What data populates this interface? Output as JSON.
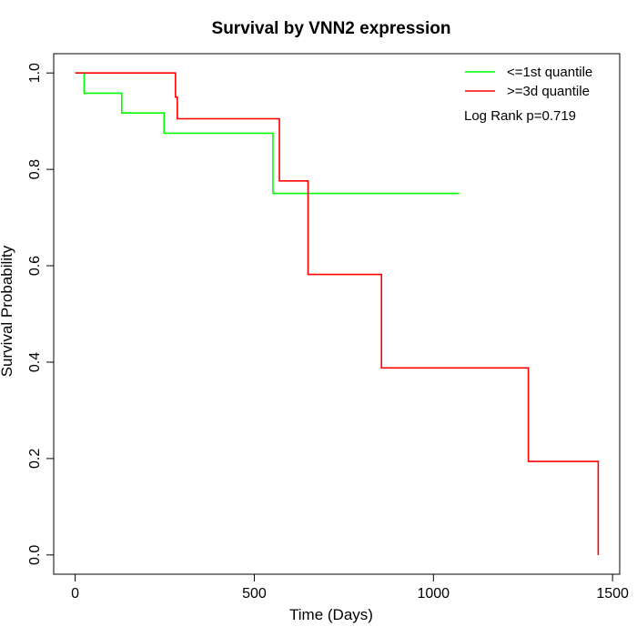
{
  "chart_data": {
    "type": "line",
    "step": true,
    "title": "Survival by VNN2 expression",
    "xlabel": "Time (Days)",
    "ylabel": "Survival Probability",
    "xlim": [
      -60,
      1520
    ],
    "ylim": [
      -0.04,
      1.04
    ],
    "xticks": [
      0,
      500,
      1000,
      1500
    ],
    "yticks": [
      0.0,
      0.2,
      0.4,
      0.6,
      0.8,
      1.0
    ],
    "xtick_labels": [
      "0",
      "500",
      "1000",
      "1500"
    ],
    "ytick_labels": [
      "0.0",
      "0.2",
      "0.4",
      "0.6",
      "0.8",
      "1.0"
    ],
    "grid": false,
    "legend_position": "top-right",
    "annotation": "Log Rank p=0.719",
    "series": [
      {
        "name": "<=1st quantile",
        "color": "#00ff00",
        "x": [
          0,
          25,
          130,
          248,
          552,
          1072
        ],
        "y": [
          1.0,
          0.958,
          0.917,
          0.875,
          0.75,
          0.75
        ]
      },
      {
        "name": ">=3d quantile",
        "color": "#ff0000",
        "x": [
          0,
          280,
          285,
          570,
          650,
          855,
          1265,
          1460
        ],
        "y": [
          1.0,
          0.95,
          0.905,
          0.776,
          0.582,
          0.388,
          0.194,
          0.0
        ]
      }
    ]
  }
}
